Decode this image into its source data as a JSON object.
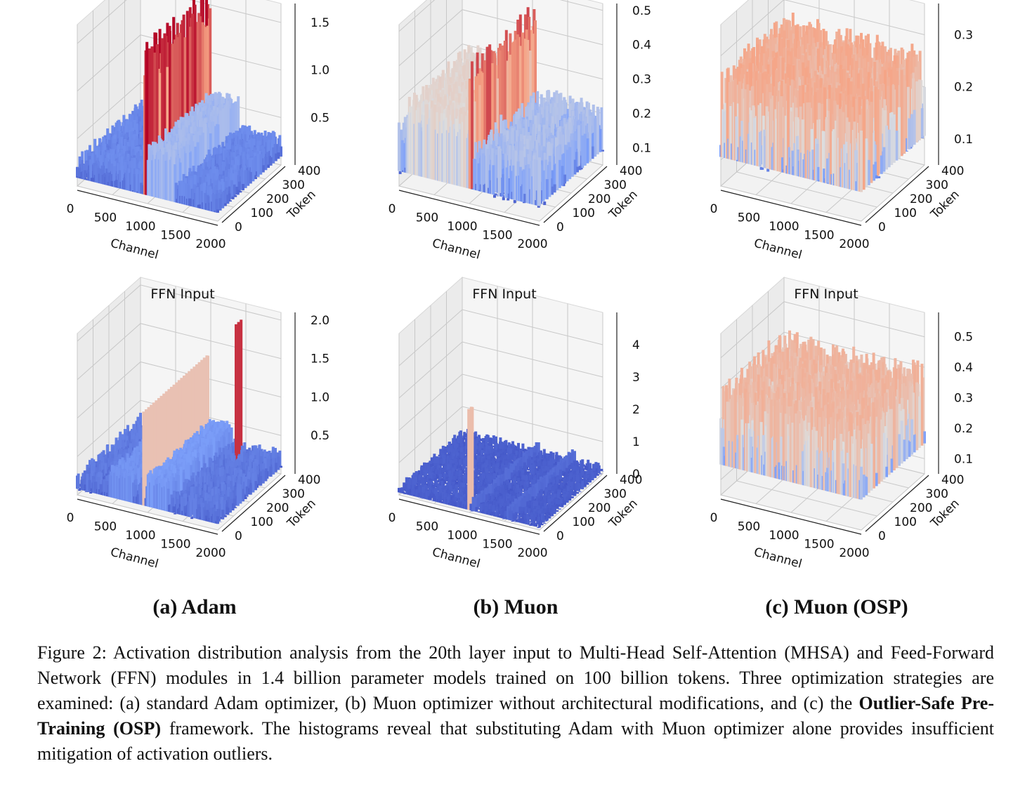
{
  "chart_data": [
    {
      "id": "a-top",
      "type": "surface3d",
      "title": "",
      "optimizer": "Adam",
      "xlabel": "Channel",
      "ylabel": "Token",
      "xticks": [
        "0",
        "500",
        "1000",
        "1500",
        "2000"
      ],
      "yticks": [
        "0",
        "100",
        "200",
        "300",
        "400"
      ],
      "zticks": [
        "0.5",
        "1.0",
        "1.5"
      ],
      "zlim": [
        0.0,
        1.7
      ],
      "base_level": 0.22,
      "noise": 0.12,
      "outlier_bands": [
        {
          "channel_range": [
            950,
            1000
          ],
          "peak": 1.65
        },
        {
          "channel_range": [
            1000,
            1400
          ],
          "peak": 0.6
        }
      ],
      "colormap": "coolwarm",
      "grid": true
    },
    {
      "id": "b-top",
      "type": "surface3d",
      "title": "",
      "optimizer": "Muon",
      "xlabel": "Channel",
      "ylabel": "Token",
      "xticks": [
        "0",
        "500",
        "1000",
        "1500",
        "2000"
      ],
      "yticks": [
        "0",
        "100",
        "200",
        "300",
        "400"
      ],
      "zticks": [
        "0.1",
        "0.2",
        "0.3",
        "0.4",
        "0.5"
      ],
      "zlim": [
        0.05,
        0.52
      ],
      "base_level": 0.16,
      "noise": 0.08,
      "outlier_bands": [
        {
          "channel_range": [
            100,
            1000
          ],
          "peak": 0.3
        },
        {
          "channel_range": [
            1000,
            1050
          ],
          "peak": 0.45
        }
      ],
      "colormap": "coolwarm",
      "grid": true
    },
    {
      "id": "c-top",
      "type": "surface3d",
      "title": "FFN Input",
      "optimizer": "Muon (OSP)",
      "xlabel": "Channel",
      "ylabel": "Token",
      "xticks": [
        "0",
        "500",
        "1000",
        "1500",
        "2000"
      ],
      "yticks": [
        "0",
        "100",
        "200",
        "300",
        "400"
      ],
      "zticks": [
        "0.1",
        "0.2",
        "0.3"
      ],
      "zlim": [
        0.05,
        0.36
      ],
      "base_level": 0.19,
      "noise": 0.09,
      "outlier_bands": [],
      "colormap": "coolwarm",
      "grid": true
    },
    {
      "id": "a-bottom",
      "type": "surface3d",
      "title": "",
      "optimizer": "Adam",
      "xlabel": "Channel",
      "ylabel": "Token",
      "xticks": [
        "0",
        "500",
        "1000",
        "1500",
        "2000"
      ],
      "yticks": [
        "0",
        "100",
        "200",
        "300",
        "400"
      ],
      "zticks": [
        "0.5",
        "1.0",
        "1.5",
        "2.0"
      ],
      "zlim": [
        0.0,
        2.1
      ],
      "base_level": 0.2,
      "noise": 0.14,
      "outlier_bands": [
        {
          "channel_range": [
            450,
            800
          ],
          "peak": 0.45
        },
        {
          "channel_range": [
            1000,
            1300
          ],
          "peak": 0.5
        }
      ],
      "spikes": [
        {
          "channel": 950,
          "peak": 1.3
        },
        {
          "channel": 1500,
          "token": 350,
          "peak": 1.95
        }
      ],
      "colormap": "coolwarm",
      "grid": true
    },
    {
      "id": "b-bottom",
      "type": "surface3d",
      "title": "",
      "optimizer": "Muon",
      "xlabel": "Channel",
      "ylabel": "Token",
      "xticks": [
        "0",
        "500",
        "1000",
        "1500",
        "2000"
      ],
      "yticks": [
        "0",
        "100",
        "200",
        "300",
        "400"
      ],
      "zticks": [
        "0",
        "1",
        "2",
        "3",
        "4"
      ],
      "zlim": [
        0.0,
        5.0
      ],
      "base_level": 0.2,
      "noise": 0.15,
      "outlier_bands": [
        {
          "channel_range": [
            1050,
            1100
          ],
          "peak": 0.5
        },
        {
          "channel_range": [
            1550,
            1600
          ],
          "peak": 0.5
        }
      ],
      "spikes": [
        {
          "channel": 1000,
          "token": 0,
          "peak": 3.2
        }
      ],
      "colormap": "coolwarm",
      "grid": true
    },
    {
      "id": "c-bottom",
      "type": "surface3d",
      "title": "",
      "optimizer": "Muon (OSP)",
      "xlabel": "Channel",
      "ylabel": "Token",
      "xticks": [
        "0",
        "500",
        "1000",
        "1500",
        "2000"
      ],
      "yticks": [
        "0",
        "100",
        "200",
        "300",
        "400"
      ],
      "zticks": [
        "0.1",
        "0.2",
        "0.3",
        "0.4",
        "0.5"
      ],
      "zlim": [
        0.05,
        0.58
      ],
      "base_level": 0.3,
      "noise": 0.12,
      "outlier_bands": [],
      "colormap": "coolwarm",
      "grid": true
    }
  ],
  "panel_titles": [
    "FFN Input",
    "FFN Input",
    "FFN Input"
  ],
  "sub_captions": [
    "(a) Adam",
    "(b) Muon",
    "(c) Muon (OSP)"
  ],
  "caption": {
    "part1": "Figure 2: Activation distribution analysis from the 20th layer input to Multi-Head Self-Attention (MHSA) and Feed-Forward Network (FFN) modules in 1.4 billion parameter models trained on 100 billion tokens. Three optimization strategies are examined: (a) standard Adam optimizer, (b) Muon optimizer without architectural modifications, and (c) the ",
    "bold": "Outlier-Safe Pre-Training (OSP)",
    "part2": " framework. The histograms reveal that substituting Adam with Muon optimizer alone provides insufficient mitigation of activation outliers."
  }
}
